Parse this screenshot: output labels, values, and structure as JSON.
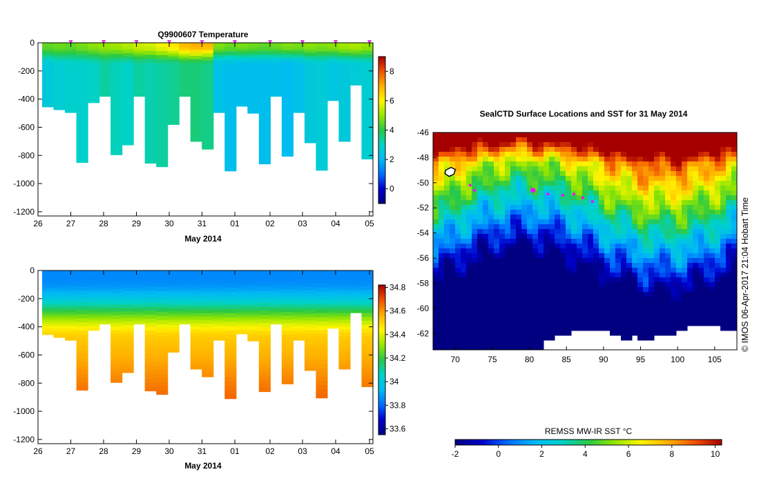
{
  "chart_data": [
    {
      "type": "heatmap",
      "title": "Q9900607  Temperature",
      "xlabel": "May 2014",
      "ylabel": "",
      "x_tick_labels": [
        "26",
        "27",
        "28",
        "29",
        "30",
        "31",
        "01",
        "02",
        "03",
        "04",
        "05"
      ],
      "y_tick_labels": [
        "0",
        "-200",
        "-400",
        "-600",
        "-800",
        "-1000",
        "-1200"
      ],
      "ylim": [
        -1230,
        0
      ],
      "colorbar": {
        "min": -1,
        "max": 9,
        "ticks": [
          "0",
          "2",
          "4",
          "6",
          "8"
        ]
      },
      "profile_bottoms": [
        -455,
        -475,
        -495,
        -850,
        -425,
        -380,
        -795,
        -725,
        -380,
        -855,
        -880,
        -580,
        -380,
        -700,
        -755,
        -495,
        -910,
        -450,
        -500,
        -860,
        -380,
        -805,
        -495,
        -710,
        -905,
        -410,
        -700,
        -300,
        -825
      ],
      "surface_values": [
        4.5,
        4.6,
        4.5,
        4.7,
        4.9,
        5.0,
        5.1,
        5.3,
        5.5,
        5.6,
        5.9,
        6.2,
        6.8,
        7.0,
        6.9,
        4.8,
        4.6,
        4.7,
        4.6,
        4.5,
        4.6,
        4.8,
        4.7,
        4.9,
        4.8,
        4.9,
        5.1,
        5.2,
        5.0
      ],
      "deep_values": [
        2.6,
        2.8,
        2.9,
        2.9,
        3.0,
        3.3,
        3.1,
        3.0,
        3.3,
        3.2,
        3.3,
        3.4,
        3.6,
        3.6,
        3.5,
        2.3,
        2.2,
        2.2,
        2.2,
        2.2,
        2.2,
        2.1,
        2.3,
        2.6,
        2.7,
        2.5,
        2.6,
        2.7,
        2.8
      ],
      "surface_markers": [
        "27",
        "28",
        "29",
        "30",
        "31",
        "01",
        "02",
        "03",
        "04",
        "05"
      ]
    },
    {
      "type": "heatmap",
      "title": "",
      "xlabel": "May 2014",
      "ylabel": "",
      "x_tick_labels": [
        "26",
        "27",
        "28",
        "29",
        "30",
        "31",
        "01",
        "02",
        "03",
        "04",
        "05"
      ],
      "y_tick_labels": [
        "0",
        "-200",
        "-400",
        "-600",
        "-800",
        "-1000",
        "-1200"
      ],
      "ylim": [
        -1230,
        0
      ],
      "colorbar": {
        "min": 33.55,
        "max": 34.82,
        "ticks": [
          "33.6",
          "33.8",
          "34",
          "34.2",
          "34.4",
          "34.6",
          "34.8"
        ]
      },
      "surface_salinity": 33.85,
      "deep_salinity_max": 34.74
    },
    {
      "type": "heatmap",
      "title": "SealCTD Surface Locations and SST for 31 May 2014",
      "xlabel": "",
      "ylabel": "",
      "x_tick_labels": [
        "70",
        "75",
        "80",
        "85",
        "90",
        "95",
        "100",
        "105"
      ],
      "y_tick_labels": [
        "-46",
        "-48",
        "-50",
        "-52",
        "-54",
        "-56",
        "-58",
        "-60",
        "-62"
      ],
      "xlim": [
        67,
        108
      ],
      "ylim": [
        -63.3,
        -46
      ],
      "track": [
        {
          "lon": 72.0,
          "lat": -50.2
        },
        {
          "lon": 72.6,
          "lat": -50.6
        },
        {
          "lon": 80.5,
          "lat": -50.6
        },
        {
          "lon": 82.5,
          "lat": -50.9
        },
        {
          "lon": 84.5,
          "lat": -51.0
        },
        {
          "lon": 86.0,
          "lat": -50.9
        },
        {
          "lon": 87.2,
          "lat": -51.2
        },
        {
          "lon": 88.5,
          "lat": -51.5
        }
      ],
      "colorbar": {
        "label": "REMSS MW-IR SST °C",
        "min": -2,
        "max": 10.3,
        "ticks": [
          "-2",
          "0",
          "2",
          "4",
          "6",
          "8",
          "10"
        ]
      }
    }
  ],
  "credit": "© IMOS 06-Apr-2017 21:04 Hobart Time"
}
